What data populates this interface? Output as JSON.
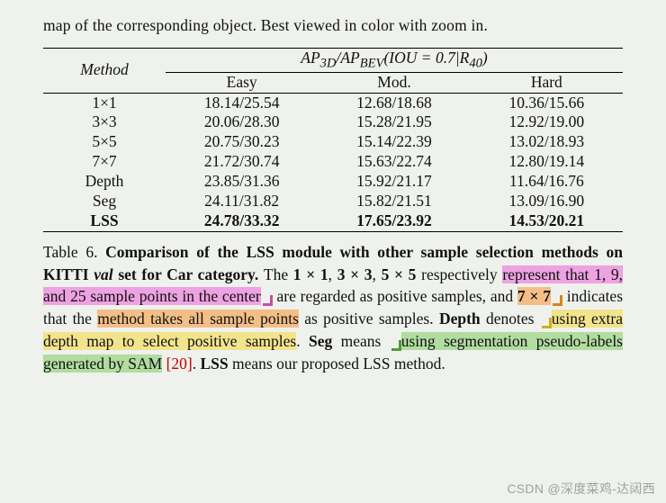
{
  "partial_top": "map of the corresponding object. Best viewed in color with zoom in.",
  "table": {
    "method_label": "Method",
    "super_header": "AP₃ₓ / APₙₑᵥ (IOU = 0.7 | R₄₀)",
    "super_header_html": "<span class='ital'>AP</span><sub>3D</sub>/<span class='ital'>AP</span><sub>BEV</sub>(<span class='ital'>IOU</span> = 0.7|<span class='ital'>R</span><sub>40</sub>)",
    "cols": [
      "Easy",
      "Mod.",
      "Hard"
    ],
    "rows": [
      {
        "method": "1×1",
        "easy": "18.14/25.54",
        "mod": "12.68/18.68",
        "hard": "10.36/15.66",
        "bold": false
      },
      {
        "method": "3×3",
        "easy": "20.06/28.30",
        "mod": "15.28/21.95",
        "hard": "12.92/19.00",
        "bold": false
      },
      {
        "method": "5×5",
        "easy": "20.75/30.23",
        "mod": "15.14/22.39",
        "hard": "13.02/18.93",
        "bold": false
      },
      {
        "method": "7×7",
        "easy": "21.72/30.74",
        "mod": "15.63/22.74",
        "hard": "12.80/19.14",
        "bold": false
      },
      {
        "method": "Depth",
        "easy": "23.85/31.36",
        "mod": "15.92/21.17",
        "hard": "11.64/16.76",
        "bold": false
      },
      {
        "method": "Seg",
        "easy": "24.11/31.82",
        "mod": "15.82/21.51",
        "hard": "13.09/16.90",
        "bold": false
      },
      {
        "method": "LSS",
        "easy": "24.78/33.32",
        "mod": "17.65/23.92",
        "hard": "14.53/20.21",
        "bold": true
      }
    ]
  },
  "caption": {
    "label": "Table 6.",
    "title": "Comparison of the LSS module with other sample selection methods on KITTI",
    "title_ital": "val",
    "title_tail": "set for Car category.",
    "s1a": "The ",
    "s1b": "1 × 1",
    "s1c": ", ",
    "s1d": "3 × 3",
    "s1e": ", ",
    "s1f": "5 × 5",
    "s1g": " respectively ",
    "pink": "represent that 1, 9, and 25 sample points in the center",
    "s1h": " are regarded as positive samples, and ",
    "orange_a": "7 × 7",
    "s1i": " indicates that the ",
    "orange_b": "method takes all sample points",
    "s1j": " as positive samples. ",
    "depth": "Depth",
    "s2a": " denotes ",
    "yellow": "using extra depth map to select positive samples",
    "s2b": ". ",
    "seg": "Seg",
    "s3a": " means ",
    "green": "using segmentation pseudo-labels generated by SAM",
    "cite": "[20]",
    "s3b": ". ",
    "lss": "LSS",
    "s4": " means our proposed LSS method."
  },
  "watermark": "CSDN @深度菜鸡-达闼西",
  "colors": {
    "pink": "#eda2e1",
    "orange": "#f3bf87",
    "yellow": "#f2e48c",
    "green": "#b2dca0",
    "background": "#eef1ec",
    "cite": "#c00000"
  }
}
